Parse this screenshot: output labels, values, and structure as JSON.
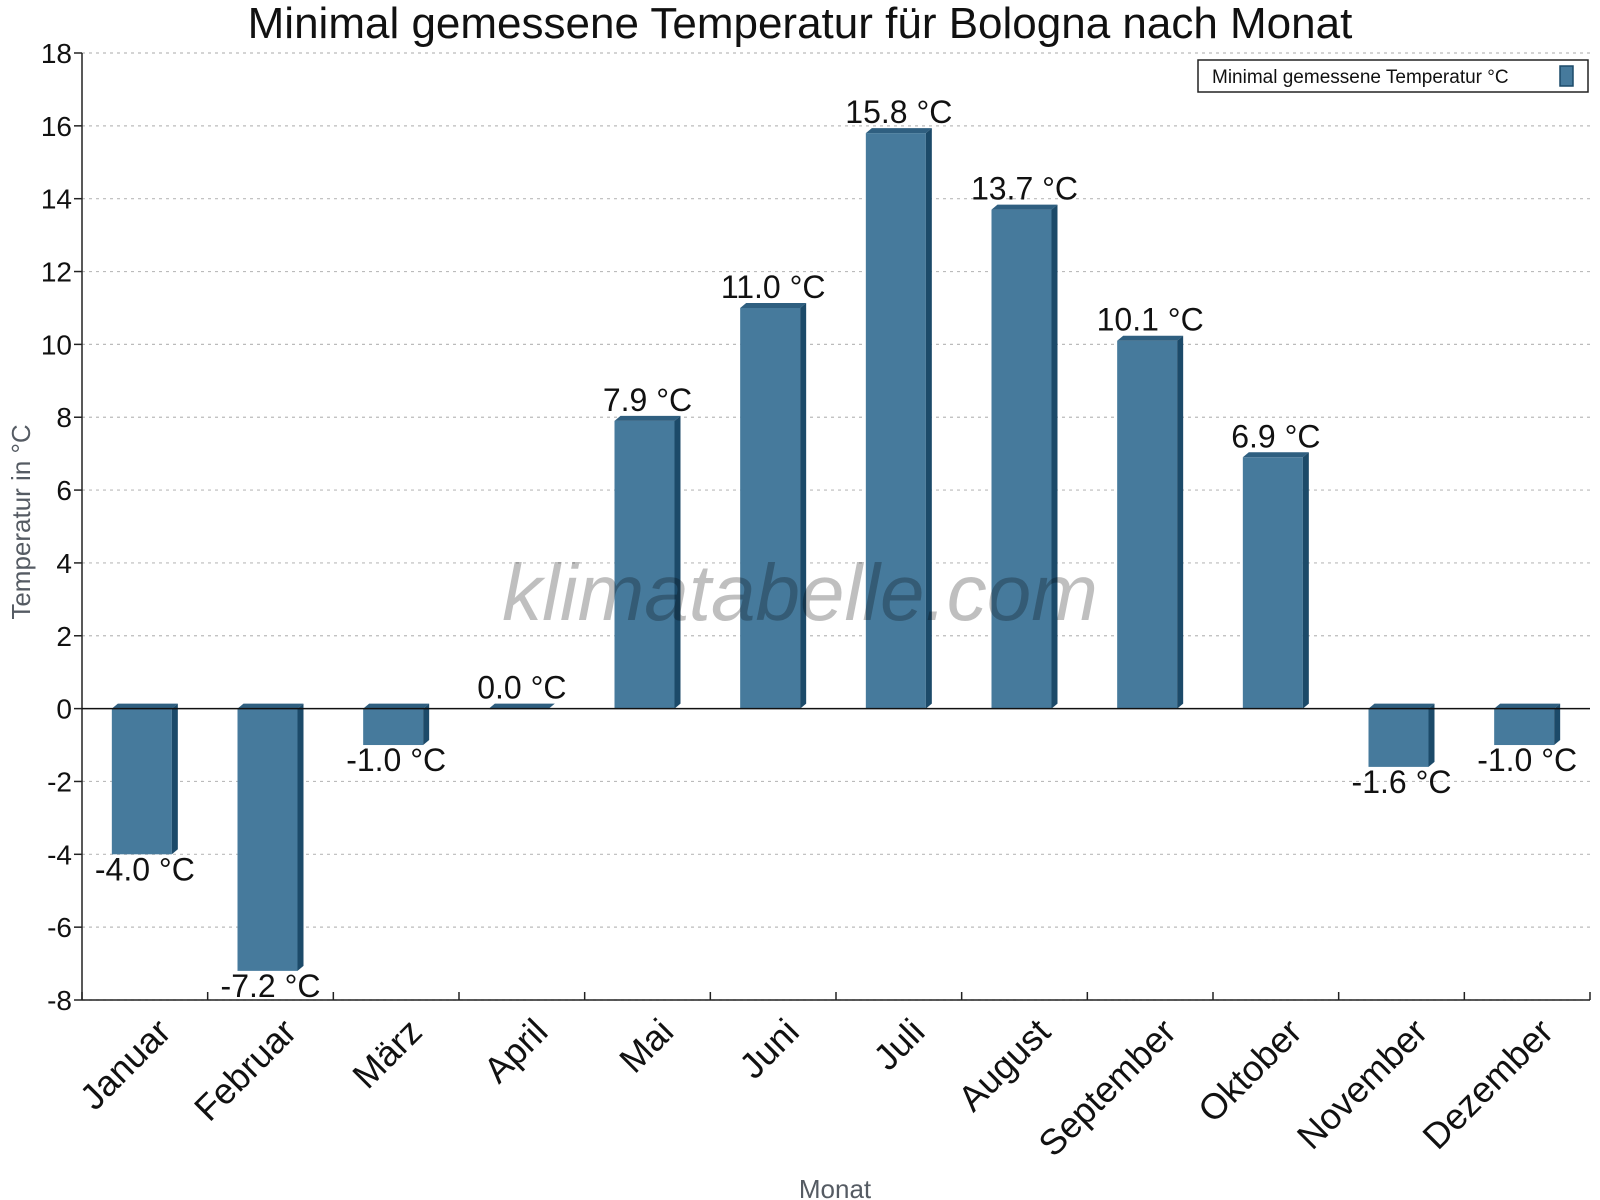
{
  "chart_data": {
    "type": "bar",
    "title": "Minimal gemessene Temperatur für Bologna nach Monat",
    "xlabel": "Monat",
    "ylabel": "Temperatur in °C",
    "categories": [
      "Januar",
      "Februar",
      "März",
      "April",
      "Mai",
      "Juni",
      "Juli",
      "August",
      "September",
      "Oktober",
      "November",
      "Dezember"
    ],
    "series": [
      {
        "name": "Minimal gemessene Temperatur °C",
        "values": [
          -4.0,
          -7.2,
          -1.0,
          0.0,
          7.9,
          11.0,
          15.8,
          13.7,
          10.1,
          6.9,
          -1.6,
          -1.0
        ],
        "labels": [
          "-4.0 °C",
          "-7.2 °C",
          "-1.0 °C",
          "0.0 °C",
          "7.9 °C",
          "11.0 °C",
          "15.8 °C",
          "13.7 °C",
          "10.1 °C",
          "6.9 °C",
          "-1.6 °C",
          "-1.0 °C"
        ]
      }
    ],
    "ylim": [
      -8,
      18
    ],
    "yticks": [
      "-8",
      "-6",
      "-4",
      "-2",
      "0",
      "2",
      "4",
      "6",
      "8",
      "10",
      "12",
      "14",
      "16",
      "18"
    ],
    "grid": true,
    "legend_position": "top-right",
    "watermark": "klimatabelle.com",
    "colors": {
      "bar": "#467a9c",
      "bar_top": "#2f5f80",
      "bar_side": "#1c4a69"
    }
  }
}
